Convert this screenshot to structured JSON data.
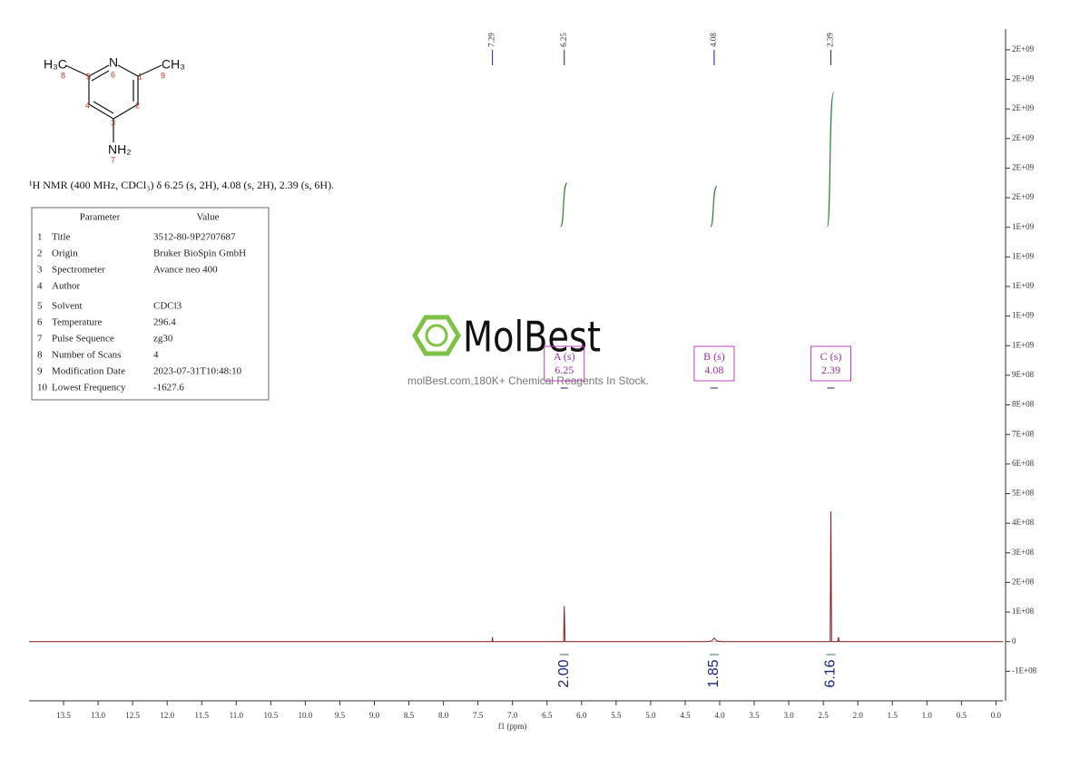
{
  "chart_data": {
    "type": "line",
    "x_label": "f1 (ppm)",
    "x": [
      14.0,
      7.32,
      7.295,
      7.29,
      7.285,
      7.26,
      6.3,
      6.26,
      6.25,
      6.24,
      6.2,
      4.2,
      4.12,
      4.08,
      4.04,
      3.95,
      2.45,
      2.4,
      2.39,
      2.38,
      2.33,
      2.29,
      2.28,
      2.27,
      -0.1
    ],
    "series": [
      {
        "color": "#8b1a1a",
        "values": [
          0,
          0,
          0,
          15000000,
          0,
          0,
          0,
          0,
          120000000,
          0,
          0,
          0,
          2000000,
          12000000,
          2000000,
          0,
          0,
          0,
          440000000,
          0,
          0,
          0,
          15000000,
          0,
          0
        ]
      }
    ],
    "xlim": [
      14.0,
      -0.1
    ],
    "xticks": [
      {
        "value": 13.5,
        "label": "13.5"
      },
      {
        "value": 13,
        "label": "13.0"
      },
      {
        "value": 12.5,
        "label": "12.5"
      },
      {
        "value": 12,
        "label": "12.0"
      },
      {
        "value": 11.5,
        "label": "11.5"
      },
      {
        "value": 11,
        "label": "11.0"
      },
      {
        "value": 10.5,
        "label": "10.5"
      },
      {
        "value": 10,
        "label": "10.0"
      },
      {
        "value": 9.5,
        "label": "9.5"
      },
      {
        "value": 9,
        "label": "9.0"
      },
      {
        "value": 8.5,
        "label": "8.5"
      },
      {
        "value": 8,
        "label": "8.0"
      },
      {
        "value": 7.5,
        "label": "7.5"
      },
      {
        "value": 7,
        "label": "7.0"
      },
      {
        "value": 6.5,
        "label": "6.5"
      },
      {
        "value": 6,
        "label": "6.0"
      },
      {
        "value": 5.5,
        "label": "5.5"
      },
      {
        "value": 5,
        "label": "5.0"
      },
      {
        "value": 4.5,
        "label": "4.5"
      },
      {
        "value": 4,
        "label": "4.0"
      },
      {
        "value": 3.5,
        "label": "3.5"
      },
      {
        "value": 3,
        "label": "3.0"
      },
      {
        "value": 2.5,
        "label": "2.5"
      },
      {
        "value": 2,
        "label": "2.0"
      },
      {
        "value": 1.5,
        "label": "1.5"
      },
      {
        "value": 1,
        "label": "1.0"
      },
      {
        "value": 0.5,
        "label": "0.5"
      },
      {
        "value": 0,
        "label": "0.0"
      }
    ],
    "ylim": [
      -200000000,
      2070000000
    ],
    "yticks": [
      {
        "value": -100000000,
        "label": "-1E+08"
      },
      0,
      {
        "value": 100000000,
        "label": "1E+08"
      },
      {
        "value": 200000000,
        "label": "2E+08"
      },
      {
        "value": 300000000,
        "label": "3E+08"
      },
      {
        "value": 400000000,
        "label": "4E+08"
      },
      {
        "value": 500000000,
        "label": "5E+08"
      },
      {
        "value": 600000000,
        "label": "6E+08"
      },
      {
        "value": 700000000,
        "label": "7E+08"
      },
      {
        "value": 800000000,
        "label": "8E+08"
      },
      {
        "value": 900000000,
        "label": "9E+08"
      },
      {
        "value": 1000000000,
        "label": "1E+09"
      },
      {
        "value": 1100000000,
        "label": "1E+09"
      },
      {
        "value": 1200000000,
        "label": "1E+09"
      },
      {
        "value": 1300000000,
        "label": "1E+09"
      },
      {
        "value": 1400000000,
        "label": "1E+09"
      },
      {
        "value": 1500000000,
        "label": "2E+09"
      },
      {
        "value": 1600000000,
        "label": "2E+09"
      },
      {
        "value": 1700000000,
        "label": "2E+09"
      },
      {
        "value": 1800000000,
        "label": "2E+09"
      },
      {
        "value": 1900000000,
        "label": "2E+09"
      },
      {
        "value": 2000000000,
        "label": "2E+09"
      }
    ],
    "peak_labels": [
      7.29,
      6.25,
      4.08,
      2.39
    ],
    "multiplets": [
      {
        "label": "A (s)",
        "shift": 6.25
      },
      {
        "label": "B (s)",
        "shift": 4.08
      },
      {
        "label": "C (s)",
        "shift": 2.39
      }
    ],
    "integrals": {
      "shifts": [
        6.25,
        4.08,
        2.39
      ],
      "values": [
        2,
        1.85,
        6.16
      ],
      "value_labels": [
        "2.00",
        "1.85",
        "6.16"
      ]
    }
  },
  "description": "¹H NMR (400 MHz, CDCl₃) δ 6.25 (s, 2H), 4.08 (s, 2H), 2.39 (s, 6H).",
  "structure": {
    "labels": [
      "H₃C",
      "N",
      "CH₃",
      "NH₂"
    ],
    "numbers": [
      "8",
      "5",
      "6",
      "1",
      "9",
      "4",
      "2",
      "3",
      "7"
    ]
  },
  "table": {
    "header": [
      "Parameter",
      "Value"
    ],
    "rows": [
      [
        "1",
        "Title",
        "3512-80-9P2707687"
      ],
      [
        "2",
        "Origin",
        "Bruker BioSpin GmbH"
      ],
      [
        "3",
        "Spectrometer",
        "Avance neo 400"
      ],
      [
        "4",
        "Author"
      ],
      [
        "5",
        "Solvent",
        "CDCl3"
      ],
      [
        "6",
        "Temperature",
        "296.4"
      ],
      [
        "7",
        "Pulse Sequence",
        "zg30"
      ],
      [
        "8",
        "Number of Scans",
        "4"
      ],
      [
        "9",
        "Modification Date",
        "2023-07-31T10:48:10"
      ],
      [
        "10",
        "Lowest Frequency",
        "-1627.6"
      ]
    ]
  },
  "watermark": {
    "logo": "MolBest",
    "text": "molBest.com,180K+ Chemical Reagents In Stock."
  }
}
